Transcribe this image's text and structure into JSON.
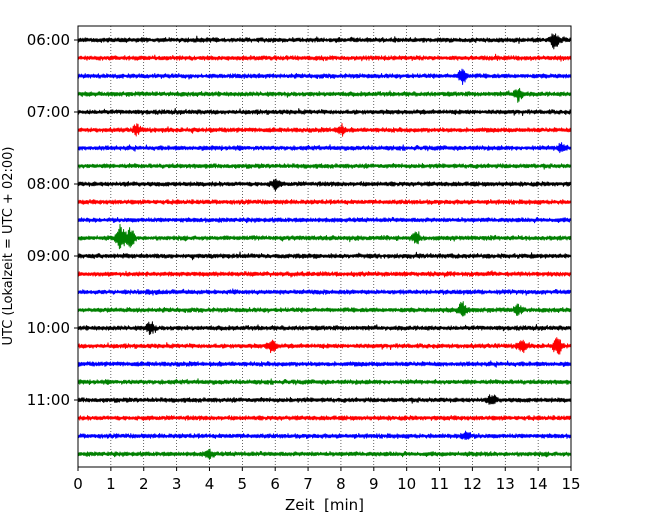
{
  "chart_data": {
    "type": "line",
    "subtype": "helicorder",
    "xlabel": "Zeit  [min]",
    "ylabel": "UTC (Lokalzeit = UTC + 02:00)",
    "xlim": [
      0,
      15
    ],
    "x_ticks": [
      0,
      1,
      2,
      3,
      4,
      5,
      6,
      7,
      8,
      9,
      10,
      11,
      12,
      13,
      14,
      15
    ],
    "y_tick_labels": [
      "06:00",
      "07:00",
      "08:00",
      "09:00",
      "10:00",
      "11:00"
    ],
    "grid": "vertical dotted lines at each minute",
    "trace_interval_minutes": 15,
    "color_cycle": [
      "#000000",
      "#ff0000",
      "#0000ff",
      "#008000"
    ],
    "traces": [
      {
        "start": "06:00",
        "color": "#000000",
        "events": [
          {
            "minute": 14.5,
            "amplitude": 1.3
          }
        ]
      },
      {
        "start": "06:15",
        "color": "#ff0000",
        "events": []
      },
      {
        "start": "06:30",
        "color": "#0000ff",
        "events": [
          {
            "minute": 11.7,
            "amplitude": 1.2
          }
        ]
      },
      {
        "start": "06:45",
        "color": "#008000",
        "events": [
          {
            "minute": 13.4,
            "amplitude": 1.1
          }
        ]
      },
      {
        "start": "07:00",
        "color": "#000000",
        "events": []
      },
      {
        "start": "07:15",
        "color": "#ff0000",
        "events": [
          {
            "minute": 1.8,
            "amplitude": 0.8
          },
          {
            "minute": 8.0,
            "amplitude": 0.8
          }
        ]
      },
      {
        "start": "07:30",
        "color": "#0000ff",
        "events": [
          {
            "minute": 14.7,
            "amplitude": 0.8
          }
        ]
      },
      {
        "start": "07:45",
        "color": "#008000",
        "events": []
      },
      {
        "start": "08:00",
        "color": "#000000",
        "events": [
          {
            "minute": 6.0,
            "amplitude": 0.8
          }
        ]
      },
      {
        "start": "08:15",
        "color": "#ff0000",
        "events": []
      },
      {
        "start": "08:30",
        "color": "#0000ff",
        "events": []
      },
      {
        "start": "08:45",
        "color": "#008000",
        "events": [
          {
            "minute": 1.3,
            "amplitude": 2.2
          },
          {
            "minute": 1.6,
            "amplitude": 1.6
          },
          {
            "minute": 10.3,
            "amplitude": 0.9
          }
        ]
      },
      {
        "start": "09:00",
        "color": "#000000",
        "events": []
      },
      {
        "start": "09:15",
        "color": "#ff0000",
        "events": []
      },
      {
        "start": "09:30",
        "color": "#0000ff",
        "events": []
      },
      {
        "start": "09:45",
        "color": "#008000",
        "events": [
          {
            "minute": 11.7,
            "amplitude": 1.2
          },
          {
            "minute": 13.4,
            "amplitude": 0.8
          }
        ]
      },
      {
        "start": "10:00",
        "color": "#000000",
        "events": [
          {
            "minute": 2.2,
            "amplitude": 1.0
          }
        ]
      },
      {
        "start": "10:15",
        "color": "#ff0000",
        "events": [
          {
            "minute": 5.9,
            "amplitude": 1.1
          },
          {
            "minute": 13.5,
            "amplitude": 1.0
          },
          {
            "minute": 14.6,
            "amplitude": 1.4
          }
        ]
      },
      {
        "start": "10:30",
        "color": "#0000ff",
        "events": []
      },
      {
        "start": "10:45",
        "color": "#008000",
        "events": []
      },
      {
        "start": "11:00",
        "color": "#000000",
        "events": [
          {
            "minute": 12.6,
            "amplitude": 0.8
          }
        ]
      },
      {
        "start": "11:15",
        "color": "#ff0000",
        "events": []
      },
      {
        "start": "11:30",
        "color": "#0000ff",
        "events": [
          {
            "minute": 11.8,
            "amplitude": 0.8
          }
        ]
      },
      {
        "start": "11:45",
        "color": "#008000",
        "events": [
          {
            "minute": 4.0,
            "amplitude": 0.7
          }
        ]
      }
    ]
  }
}
